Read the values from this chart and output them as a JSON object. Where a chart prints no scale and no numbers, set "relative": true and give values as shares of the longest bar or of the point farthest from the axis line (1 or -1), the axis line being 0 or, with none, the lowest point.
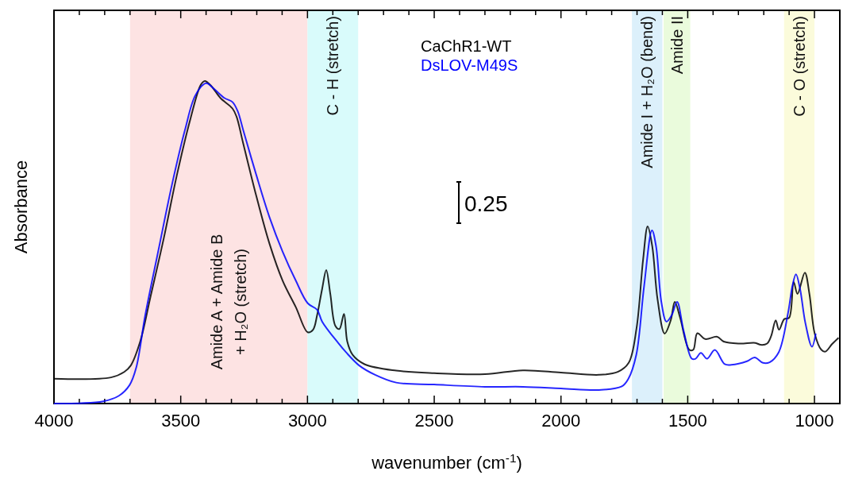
{
  "chart_data": {
    "type": "line",
    "relative": true,
    "ylabel": "Absorbance",
    "xlabel": "wavenumber (cm$^{-1}$)",
    "legend": "top",
    "grid": false,
    "marker": "none",
    "line_style": "solid",
    "xlim": [
      4000,
      900
    ],
    "xticks": [
      4000,
      {
        "value": 3900,
        "label": null
      },
      {
        "value": 3800,
        "label": null
      },
      {
        "value": 3700,
        "label": null
      },
      {
        "value": 3600,
        "label": null
      },
      3500,
      {
        "value": 3400,
        "label": null
      },
      {
        "value": 3300,
        "label": null
      },
      {
        "value": 3200,
        "label": null
      },
      {
        "value": 3100,
        "label": null
      },
      3000,
      {
        "value": 2900,
        "label": null
      },
      {
        "value": 2800,
        "label": null
      },
      {
        "value": 2700,
        "label": null
      },
      {
        "value": 2600,
        "label": null
      },
      2500,
      {
        "value": 2400,
        "label": null
      },
      {
        "value": 2300,
        "label": null
      },
      {
        "value": 2200,
        "label": null
      },
      {
        "value": 2100,
        "label": null
      },
      2000,
      {
        "value": 1900,
        "label": null
      },
      {
        "value": 1800,
        "label": null
      },
      {
        "value": 1700,
        "label": null
      },
      {
        "value": 1600,
        "label": null
      },
      1500,
      {
        "value": 1400,
        "label": null
      },
      {
        "value": 1300,
        "label": null
      },
      {
        "value": 1200,
        "label": null
      },
      {
        "value": 1100,
        "label": null
      },
      1000
    ],
    "bands": [
      {
        "axis": "x",
        "from": 3700,
        "to": 3000,
        "label": "Amide A + Amide B\n+ H₂O (stretch)",
        "color": "#fde3e3"
      },
      {
        "axis": "x",
        "from": 3000,
        "to": 2800,
        "label": "C - H (stretch)",
        "color": "#d9fbfb"
      },
      {
        "axis": "x",
        "from": 1720,
        "to": 1600,
        "label": "Amide I + H₂O (bend)",
        "color": "#dcf0fb"
      },
      {
        "axis": "x",
        "from": 1595,
        "to": 1490,
        "label": "Amide II",
        "color": "#eafbdc"
      },
      {
        "axis": "x",
        "from": 1120,
        "to": 1000,
        "label": "C - O (stretch)",
        "color": "#fbfbdb"
      }
    ],
    "annotations": [
      "0.25"
    ],
    "series": [
      {
        "name": "CaChR1-WT",
        "color": "#000000",
        "x": [
          4000,
          3775,
          3723,
          3697,
          3660,
          3619,
          3567,
          3515,
          3462,
          3421,
          3405,
          3379,
          3343,
          3296,
          3280,
          3254,
          3202,
          3150,
          3098,
          3046,
          2999,
          2978,
          2962,
          2942,
          2926,
          2910,
          2890,
          2874,
          2856,
          2843,
          2822,
          2775,
          2650,
          2500,
          2300,
          2150,
          2000,
          1850,
          1776,
          1733,
          1702,
          1676,
          1658,
          1640,
          1619,
          1591,
          1567,
          1551,
          1530,
          1494,
          1478,
          1462,
          1431,
          1384,
          1358,
          1296,
          1233,
          1212,
          1187,
          1171,
          1153,
          1140,
          1119,
          1100,
          1082,
          1067,
          1038,
          1020,
          999,
          973,
          957,
          931,
          905
        ],
        "values": [
          0.077,
          0.081,
          0.098,
          0.118,
          0.192,
          0.332,
          0.512,
          0.709,
          0.882,
          0.988,
          1.0,
          0.984,
          0.947,
          0.915,
          0.89,
          0.808,
          0.644,
          0.496,
          0.381,
          0.299,
          0.221,
          0.229,
          0.274,
          0.356,
          0.414,
          0.34,
          0.241,
          0.231,
          0.278,
          0.192,
          0.151,
          0.122,
          0.102,
          0.094,
          0.091,
          0.103,
          0.096,
          0.089,
          0.098,
          0.126,
          0.233,
          0.447,
          0.549,
          0.488,
          0.323,
          0.217,
          0.258,
          0.315,
          0.266,
          0.167,
          0.167,
          0.218,
          0.2,
          0.207,
          0.192,
          0.186,
          0.188,
          0.182,
          0.186,
          0.209,
          0.258,
          0.229,
          0.262,
          0.266,
          0.377,
          0.34,
          0.406,
          0.34,
          0.217,
          0.167,
          0.161,
          0.184,
          0.204
        ]
      },
      {
        "name": "DsLOV-M49S",
        "color": "#0000ff",
        "x": [
          4000,
          3806,
          3744,
          3702,
          3676,
          3640,
          3587,
          3535,
          3483,
          3442,
          3400,
          3369,
          3327,
          3296,
          3275,
          3254,
          3202,
          3150,
          3098,
          3046,
          2999,
          2962,
          2942,
          2879,
          2848,
          2796,
          2733,
          2650,
          2500,
          2300,
          2150,
          2000,
          1850,
          1760,
          1734,
          1703,
          1672,
          1641,
          1625,
          1604,
          1584,
          1563,
          1542,
          1516,
          1484,
          1469,
          1448,
          1424,
          1393,
          1354,
          1328,
          1266,
          1236,
          1203,
          1177,
          1141,
          1104,
          1087,
          1073,
          1057,
          1036,
          1010,
          995
        ],
        "values": [
          0.0,
          0.007,
          0.024,
          0.057,
          0.11,
          0.274,
          0.479,
          0.677,
          0.849,
          0.956,
          0.993,
          0.976,
          0.947,
          0.935,
          0.906,
          0.849,
          0.709,
          0.578,
          0.471,
          0.381,
          0.311,
          0.291,
          0.254,
          0.188,
          0.159,
          0.118,
          0.089,
          0.065,
          0.059,
          0.052,
          0.052,
          0.047,
          0.042,
          0.053,
          0.077,
          0.151,
          0.365,
          0.537,
          0.488,
          0.315,
          0.254,
          0.274,
          0.315,
          0.225,
          0.139,
          0.139,
          0.157,
          0.139,
          0.166,
          0.122,
          0.12,
          0.131,
          0.143,
          0.126,
          0.128,
          0.159,
          0.282,
          0.365,
          0.401,
          0.356,
          0.25,
          0.176,
          0.217
        ]
      }
    ]
  }
}
